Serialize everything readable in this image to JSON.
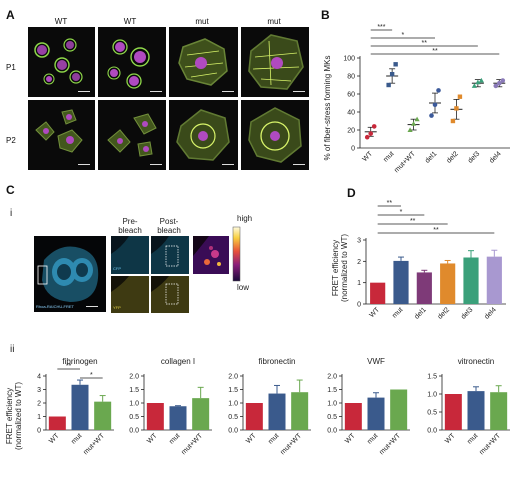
{
  "panels": {
    "A": {
      "letter": "A",
      "col_headers": [
        "WT",
        "WT",
        "mut",
        "mut"
      ],
      "row_headers": [
        "P1",
        "P2"
      ]
    },
    "B": {
      "letter": "B",
      "ylabel": "% of fiber-stress forming MKs"
    },
    "C": {
      "letter": "C",
      "sub_i": "i",
      "sub_ii": "ii",
      "prebleach": "Pre-\nbleach",
      "postbleach": "Post-\nbleach",
      "cbar_high": "high",
      "cbar_low": "low",
      "probe_label": "Rhoa-RAICHU-FRET",
      "channel_cfp": "CFP",
      "channel_yfp": "YFP"
    },
    "D": {
      "letter": "D",
      "ylabel": "FRET efficiency\n(normalized to WT)"
    },
    "ii_ylabel": "FRET efficiency\n(normalized to WT)"
  },
  "chart_data": [
    {
      "id": "B",
      "type": "scatter",
      "ylabel": "% of fiber-stress forming MKs",
      "categories": [
        "WT",
        "mut",
        "mut+WT",
        "del1",
        "del2",
        "del3",
        "del4"
      ],
      "ylim": [
        0,
        100
      ],
      "yticks": [
        0,
        20,
        40,
        60,
        80,
        100
      ],
      "means": [
        18,
        80,
        26,
        50,
        43,
        72,
        72
      ],
      "sem": [
        5,
        8,
        6,
        11,
        11,
        4,
        4
      ],
      "points": [
        [
          12,
          16,
          24
        ],
        [
          70,
          82,
          93
        ],
        [
          20,
          27,
          32
        ],
        [
          36,
          48,
          64
        ],
        [
          30,
          44,
          57
        ],
        [
          69,
          73,
          75
        ],
        [
          69,
          72,
          75
        ]
      ],
      "colors": [
        "#c8283a",
        "#3a5a8c",
        "#6aa84f",
        "#3c5a9a",
        "#e08a2c",
        "#3aa07a",
        "#8a7ab8"
      ],
      "sig": [
        {
          "from": 0,
          "to": 1,
          "label": "***"
        },
        {
          "from": 0,
          "to": 3,
          "label": "*"
        },
        {
          "from": 0,
          "to": 5,
          "label": "**"
        },
        {
          "from": 0,
          "to": 6,
          "label": "**"
        }
      ]
    },
    {
      "id": "D",
      "type": "bar",
      "ylabel": "FRET efficiency (normalized to WT)",
      "categories": [
        "WT",
        "mut",
        "del1",
        "del2",
        "del3",
        "del4"
      ],
      "ylim": [
        0,
        3
      ],
      "yticks": [
        0,
        1,
        2,
        3
      ],
      "values": [
        1.0,
        2.02,
        1.48,
        1.9,
        2.18,
        2.22
      ],
      "errors": [
        0,
        0.18,
        0.1,
        0.14,
        0.32,
        0.3
      ],
      "colors": [
        "#c8283a",
        "#3a5a8c",
        "#7e3a78",
        "#e08a2c",
        "#3aa07a",
        "#a898d0"
      ],
      "sig": [
        {
          "from": 0,
          "to": 1,
          "label": "**"
        },
        {
          "from": 0,
          "to": 2,
          "label": "*"
        },
        {
          "from": 0,
          "to": 3,
          "label": "**"
        },
        {
          "from": 0,
          "to": 5,
          "label": "**"
        }
      ]
    },
    {
      "id": "ii-fibrinogen",
      "type": "bar",
      "title": "fibrinogen",
      "categories": [
        "WT",
        "mut",
        "mut+WT"
      ],
      "ylim": [
        0,
        4
      ],
      "yticks": [
        0,
        1,
        2,
        3,
        4
      ],
      "values": [
        1.0,
        3.35,
        2.1
      ],
      "errors": [
        0,
        0.35,
        0.45
      ],
      "colors": [
        "#c8283a",
        "#3a5a8c",
        "#6aa84f"
      ],
      "sig": [
        {
          "from": 0,
          "to": 1,
          "label": "**"
        },
        {
          "from": 1,
          "to": 2,
          "label": "*"
        }
      ]
    },
    {
      "id": "ii-collagen",
      "type": "bar",
      "title": "collagen I",
      "categories": [
        "WT",
        "mut",
        "mut+WT"
      ],
      "ylim": [
        0,
        2
      ],
      "yticks": [
        0.0,
        0.5,
        1.0,
        1.5,
        2.0
      ],
      "values": [
        1.0,
        0.88,
        1.18
      ],
      "errors": [
        0,
        0.02,
        0.4
      ],
      "colors": [
        "#c8283a",
        "#3a5a8c",
        "#6aa84f"
      ],
      "sig": []
    },
    {
      "id": "ii-fibronectin",
      "type": "bar",
      "title": "fibronectin",
      "categories": [
        "WT",
        "mut",
        "mut+WT"
      ],
      "ylim": [
        0,
        2
      ],
      "yticks": [
        0.0,
        0.5,
        1.0,
        1.5,
        2.0
      ],
      "values": [
        1.0,
        1.35,
        1.4
      ],
      "errors": [
        0,
        0.3,
        0.45
      ],
      "colors": [
        "#c8283a",
        "#3a5a8c",
        "#6aa84f"
      ],
      "sig": []
    },
    {
      "id": "ii-vwf",
      "type": "bar",
      "title": "VWF",
      "categories": [
        "WT",
        "mut",
        "mut+WT"
      ],
      "ylim": [
        0,
        2
      ],
      "yticks": [
        0.0,
        0.5,
        1.0,
        1.5,
        2.0
      ],
      "values": [
        1.0,
        1.2,
        1.5
      ],
      "errors": [
        0,
        0.18,
        0
      ],
      "colors": [
        "#c8283a",
        "#3a5a8c",
        "#6aa84f"
      ],
      "sig": []
    },
    {
      "id": "ii-vitronectin",
      "type": "bar",
      "title": "vitronectin",
      "categories": [
        "WT",
        "mut",
        "mut+WT"
      ],
      "ylim": [
        0,
        1.5
      ],
      "yticks": [
        0.0,
        0.5,
        1.0,
        1.5
      ],
      "values": [
        1.0,
        1.08,
        1.05
      ],
      "errors": [
        0,
        0.12,
        0.18
      ],
      "colors": [
        "#c8283a",
        "#3a5a8c",
        "#6aa84f"
      ],
      "sig": []
    }
  ]
}
